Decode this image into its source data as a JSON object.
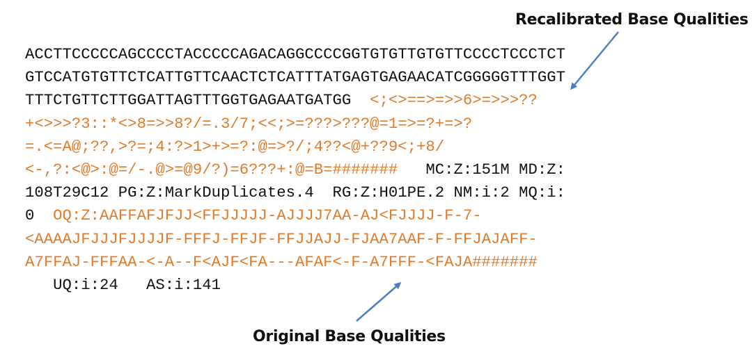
{
  "callouts": {
    "recalibrated": "Recalibrated Base Qualities",
    "original": "Original Base Qualities"
  },
  "colors": {
    "text": "#111111",
    "quality": "#e07b2c",
    "arrow": "#4a7fc1"
  },
  "record_lines": [
    [
      {
        "text": "ACCTTCCCCCAGCCCCTACCCCCAGACAGGCCCCGGTGTGTTGTGTTCCCCTCCCTCT",
        "style": "plain"
      }
    ],
    [
      {
        "text": "GTCCATGTGTTCTCATTGTTCAACTCTCATTTATGAGTGAGAACATCGGGGGTTTGGT",
        "style": "plain"
      }
    ],
    [
      {
        "text": "TTTCTGTTCTTGGATTAGTTTGGTGAGAATGATGG  ",
        "style": "plain"
      },
      {
        "text": "<;<>==>=>>6>=>>>??",
        "style": "qual"
      }
    ],
    [
      {
        "text": "+<>>>?3::*<>8=>>8?/=.3/7;<<;>=???>???@=1=>=?+=>?",
        "style": "qual"
      }
    ],
    [
      {
        "text": "=.<=A@;??,>?=;4:?>1>+>=?:@=>?/;4??<@+??9<;+8/",
        "style": "qual"
      }
    ],
    [
      {
        "text": "<-,?:<@>:@=/-.@>=@9/?)=6???+:@=B=#######",
        "style": "qual"
      },
      {
        "text": "   MC:Z:151M MD:Z:",
        "style": "plain"
      }
    ],
    [
      {
        "text": "108T29C12 PG:Z:MarkDuplicates.4  RG:Z:H01PE.2 NM:i:2 MQ:i:",
        "style": "plain"
      }
    ],
    [
      {
        "text": "0  ",
        "style": "plain"
      },
      {
        "text": "OQ:Z:AAFFAFJFJJ<FFJJJJJ-AJJJJ7AA-AJ<FJJJJ-F-7-",
        "style": "qual"
      }
    ],
    [
      {
        "text": "<AAAAJFJJJFJJJJF-FFFJ-FFJF-FFJJAJJ-FJAA7AAF-F-FFJAJAFF-",
        "style": "qual"
      }
    ],
    [
      {
        "text": "A7FFAJ-FFFAA-<-A--F<AJF<FA---AFAF<-F-A7FFF-<FAJA#######",
        "style": "qual"
      }
    ],
    [
      {
        "text": "   UQ:i:24   AS:i:141",
        "style": "plain"
      }
    ]
  ]
}
